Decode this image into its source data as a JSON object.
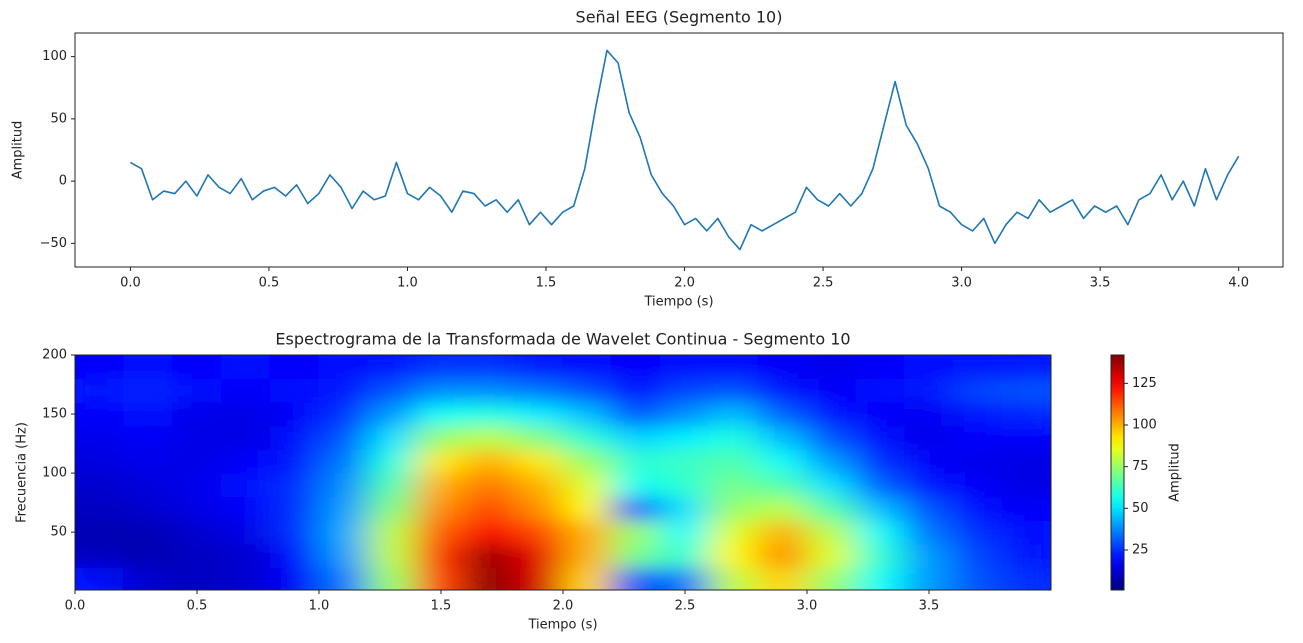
{
  "chart_data": [
    {
      "type": "line",
      "title": "Señal EEG (Segmento 10)",
      "xlabel": "Tiempo (s)",
      "ylabel": "Amplitud",
      "color": "#1f77b4",
      "x": [
        0,
        0.04,
        0.08,
        0.12,
        0.16,
        0.2,
        0.24,
        0.28,
        0.32,
        0.36,
        0.4,
        0.44,
        0.48,
        0.52,
        0.56,
        0.6,
        0.64,
        0.68,
        0.72,
        0.76,
        0.8,
        0.84,
        0.88,
        0.92,
        0.96,
        1,
        1.04,
        1.08,
        1.12,
        1.16,
        1.2,
        1.24,
        1.28,
        1.32,
        1.36,
        1.4,
        1.44,
        1.48,
        1.52,
        1.56,
        1.6,
        1.64,
        1.68,
        1.72,
        1.76,
        1.8,
        1.84,
        1.88,
        1.92,
        1.96,
        2,
        2.04,
        2.08,
        2.12,
        2.16,
        2.2,
        2.24,
        2.28,
        2.32,
        2.36,
        2.4,
        2.44,
        2.48,
        2.52,
        2.56,
        2.6,
        2.64,
        2.68,
        2.72,
        2.76,
        2.8,
        2.84,
        2.88,
        2.92,
        2.96,
        3,
        3.04,
        3.08,
        3.12,
        3.16,
        3.2,
        3.24,
        3.28,
        3.32,
        3.36,
        3.4,
        3.44,
        3.48,
        3.52,
        3.56,
        3.6,
        3.64,
        3.68,
        3.72,
        3.76,
        3.8,
        3.84,
        3.88,
        3.92,
        3.96,
        4
      ],
      "values": [
        15,
        10,
        -15,
        -8,
        -10,
        0,
        -12,
        5,
        -5,
        -10,
        2,
        -15,
        -8,
        -5,
        -12,
        -3,
        -18,
        -10,
        5,
        -5,
        -22,
        -8,
        -15,
        -12,
        15,
        -10,
        -15,
        -5,
        -12,
        -25,
        -8,
        -10,
        -20,
        -15,
        -25,
        -15,
        -35,
        -25,
        -35,
        -25,
        -20,
        10,
        60,
        105,
        95,
        55,
        35,
        5,
        -10,
        -20,
        -35,
        -30,
        -40,
        -30,
        -45,
        -55,
        -35,
        -40,
        -35,
        -30,
        -25,
        -5,
        -15,
        -20,
        -10,
        -20,
        -10,
        10,
        45,
        80,
        45,
        30,
        10,
        -20,
        -25,
        -35,
        -40,
        -30,
        -50,
        -35,
        -25,
        -30,
        -15,
        -25,
        -20,
        -15,
        -30,
        -20,
        -25,
        -20,
        -35,
        -15,
        -10,
        5,
        -15,
        0,
        -20,
        10,
        -15,
        5,
        20
      ],
      "xlim": [
        -0.2,
        4.16
      ],
      "ylim": [
        -69,
        119
      ],
      "xticks": [
        {
          "value": 0,
          "label": "0.0"
        },
        {
          "value": 0.5,
          "label": "0.5"
        },
        {
          "value": 1,
          "label": "1.0"
        },
        {
          "value": 1.5,
          "label": "1.5"
        },
        {
          "value": 2,
          "label": "2.0"
        },
        {
          "value": 2.5,
          "label": "2.5"
        },
        {
          "value": 3,
          "label": "3.0"
        },
        {
          "value": 3.5,
          "label": "3.5"
        },
        {
          "value": 4,
          "label": "4.0"
        }
      ],
      "yticks": [
        {
          "value": -50,
          "label": "−50"
        },
        0,
        50,
        100
      ]
    },
    {
      "type": "heatmap",
      "title": "Espectrograma de la Transformada de Wavelet Continua - Segmento 10",
      "xlabel": "Tiempo (s)",
      "ylabel": "Frecuencia (Hz)",
      "colormap": "jet",
      "x": [
        0.1,
        0.3,
        0.5,
        0.7,
        0.9,
        1.1,
        1.3,
        1.5,
        1.7,
        1.9,
        2.1,
        2.3,
        2.5,
        2.7,
        2.9,
        3.1,
        3.3,
        3.5,
        3.7,
        3.9
      ],
      "y": [
        10,
        30,
        50,
        70,
        90,
        110,
        130,
        150,
        170,
        190
      ],
      "z": [
        [
          20,
          12,
          10,
          12,
          18,
          35,
          75,
          115,
          140,
          130,
          95,
          30,
          35,
          80,
          95,
          75,
          55,
          40,
          30,
          25
        ],
        [
          10,
          8,
          10,
          12,
          20,
          40,
          80,
          118,
          138,
          128,
          100,
          70,
          60,
          90,
          105,
          85,
          60,
          40,
          28,
          22
        ],
        [
          8,
          8,
          12,
          15,
          25,
          42,
          80,
          112,
          125,
          115,
          100,
          75,
          55,
          85,
          100,
          80,
          55,
          35,
          25,
          20
        ],
        [
          10,
          12,
          15,
          18,
          25,
          40,
          72,
          105,
          115,
          105,
          90,
          30,
          50,
          75,
          80,
          65,
          45,
          30,
          20,
          18
        ],
        [
          12,
          14,
          16,
          20,
          25,
          38,
          65,
          100,
          108,
          100,
          85,
          55,
          60,
          70,
          65,
          50,
          32,
          22,
          18,
          15
        ],
        [
          14,
          16,
          15,
          18,
          22,
          35,
          58,
          92,
          100,
          92,
          75,
          60,
          62,
          65,
          55,
          40,
          25,
          18,
          16,
          15
        ],
        [
          16,
          18,
          15,
          15,
          20,
          30,
          50,
          75,
          80,
          72,
          60,
          48,
          52,
          58,
          45,
          30,
          20,
          16,
          18,
          18
        ],
        [
          18,
          20,
          16,
          15,
          18,
          25,
          40,
          55,
          58,
          52,
          45,
          30,
          38,
          45,
          32,
          22,
          18,
          17,
          22,
          24
        ],
        [
          22,
          24,
          20,
          18,
          20,
          22,
          30,
          38,
          38,
          35,
          30,
          20,
          28,
          30,
          22,
          18,
          20,
          22,
          28,
          30
        ],
        [
          18,
          20,
          18,
          20,
          18,
          20,
          22,
          25,
          25,
          22,
          20,
          18,
          20,
          20,
          18,
          16,
          18,
          20,
          22,
          22
        ]
      ],
      "xlim": [
        0,
        4
      ],
      "ylim": [
        1,
        200
      ],
      "xticks": [
        {
          "value": 0,
          "label": "0.0"
        },
        {
          "value": 0.5,
          "label": "0.5"
        },
        {
          "value": 1,
          "label": "1.0"
        },
        {
          "value": 1.5,
          "label": "1.5"
        },
        {
          "value": 2,
          "label": "2.0"
        },
        {
          "value": 2.5,
          "label": "2.5"
        },
        {
          "value": 3,
          "label": "3.0"
        },
        {
          "value": 3.5,
          "label": "3.5"
        }
      ],
      "yticks": [
        50,
        100,
        150,
        200
      ],
      "colorbar": {
        "label": "Amplitud",
        "lim": [
          1,
          142
        ],
        "ticks": [
          25,
          50,
          75,
          100,
          125
        ]
      }
    }
  ]
}
